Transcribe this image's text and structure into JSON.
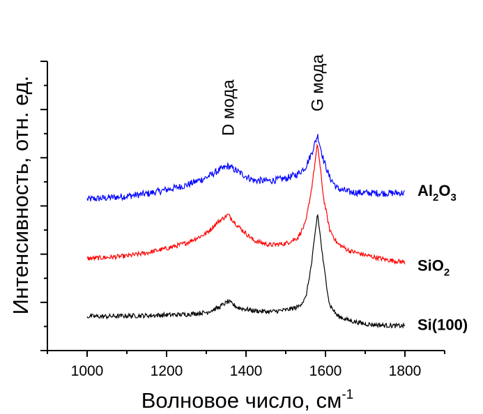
{
  "chart_data": {
    "type": "line",
    "xlabel": "Волновое число, см",
    "xlabel_sup": "-1",
    "ylabel": "Интенсивность, отн. ед.",
    "xlim": [
      900,
      1900
    ],
    "ylim": [
      0,
      1
    ],
    "x_ticks": [
      "1000",
      "1200",
      "1400",
      "1600",
      "1800"
    ],
    "y_tick_labels_shown": false,
    "grid": false,
    "annotations": [
      {
        "text": "D мода",
        "x": 1355
      },
      {
        "text": "G мода",
        "x": 1580
      }
    ],
    "series": [
      {
        "name_parts": [
          {
            "text": "Al",
            "sub": false
          },
          {
            "text": "2",
            "sub": true
          },
          {
            "text": "O",
            "sub": false
          },
          {
            "text": "3",
            "sub": true
          }
        ],
        "color": "#0000ff",
        "x": [
          1000,
          1050,
          1100,
          1150,
          1200,
          1250,
          1300,
          1330,
          1355,
          1380,
          1420,
          1460,
          1500,
          1530,
          1550,
          1565,
          1580,
          1595,
          1610,
          1630,
          1660,
          1700,
          1750,
          1800
        ],
        "values": [
          0.523,
          0.528,
          0.534,
          0.542,
          0.556,
          0.572,
          0.598,
          0.622,
          0.638,
          0.618,
          0.588,
          0.587,
          0.595,
          0.61,
          0.635,
          0.682,
          0.745,
          0.66,
          0.6,
          0.56,
          0.548,
          0.545,
          0.544,
          0.545
        ]
      },
      {
        "name_parts": [
          {
            "text": "SiO",
            "sub": false
          },
          {
            "text": "2",
            "sub": true
          }
        ],
        "color": "#ff0000",
        "x": [
          1000,
          1050,
          1100,
          1150,
          1200,
          1250,
          1300,
          1330,
          1355,
          1380,
          1420,
          1460,
          1500,
          1530,
          1550,
          1565,
          1580,
          1595,
          1610,
          1630,
          1660,
          1700,
          1750,
          1800
        ],
        "values": [
          0.318,
          0.322,
          0.327,
          0.338,
          0.353,
          0.372,
          0.405,
          0.445,
          0.47,
          0.43,
          0.38,
          0.365,
          0.37,
          0.39,
          0.44,
          0.56,
          0.715,
          0.53,
          0.42,
          0.37,
          0.345,
          0.33,
          0.315,
          0.305
        ]
      },
      {
        "name_parts": [
          {
            "text": "Si(100)",
            "sub": false
          }
        ],
        "color": "#000000",
        "x": [
          1000,
          1050,
          1100,
          1150,
          1200,
          1250,
          1300,
          1330,
          1355,
          1380,
          1420,
          1460,
          1500,
          1530,
          1550,
          1565,
          1580,
          1595,
          1610,
          1630,
          1660,
          1700,
          1750,
          1800
        ],
        "values": [
          0.118,
          0.118,
          0.12,
          0.121,
          0.123,
          0.125,
          0.132,
          0.148,
          0.17,
          0.148,
          0.138,
          0.134,
          0.14,
          0.15,
          0.18,
          0.3,
          0.475,
          0.3,
          0.16,
          0.12,
          0.104,
          0.092,
          0.087,
          0.085
        ]
      }
    ]
  }
}
